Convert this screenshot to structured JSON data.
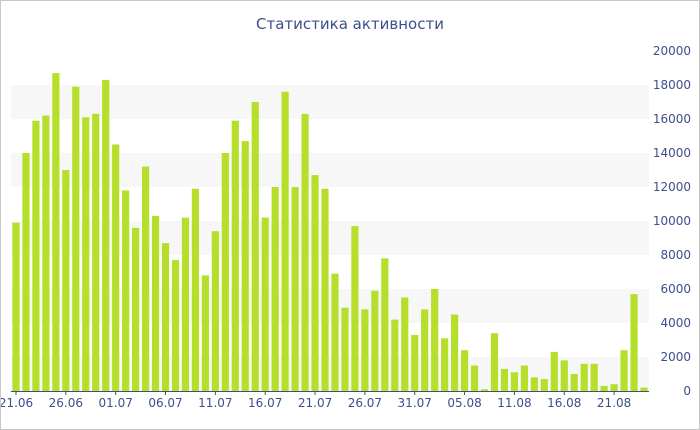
{
  "chart_data": {
    "type": "bar",
    "title": "Статистика активности",
    "xlabel": "",
    "ylabel": "",
    "ylim": [
      0,
      20000
    ],
    "y_ticks": [
      0,
      2000,
      4000,
      6000,
      8000,
      10000,
      12000,
      14000,
      16000,
      18000,
      20000
    ],
    "y_axis_side": "right",
    "grid": "alternating horizontal bands",
    "x_tick_labels": [
      "21.06",
      "26.06",
      "01.07",
      "06.07",
      "11.07",
      "16.07",
      "21.07",
      "26.07",
      "31.07",
      "05.08",
      "11.08",
      "16.08",
      "21.08"
    ],
    "x_tick_indices": [
      0,
      5,
      10,
      15,
      20,
      25,
      30,
      35,
      40,
      45,
      50,
      55,
      60
    ],
    "values": [
      9900,
      14000,
      15900,
      16200,
      18700,
      13000,
      17900,
      16100,
      16300,
      18300,
      14500,
      11800,
      9600,
      13200,
      10300,
      8700,
      7700,
      10200,
      11900,
      6800,
      9400,
      14000,
      15900,
      14700,
      17000,
      10200,
      12000,
      17600,
      12000,
      16300,
      12700,
      11900,
      6900,
      4900,
      9700,
      4800,
      5900,
      7800,
      4200,
      5500,
      3300,
      4800,
      6000,
      3100,
      4500,
      2400,
      1500,
      100,
      3400,
      1300,
      1100,
      1500,
      800,
      700,
      2300,
      1800,
      1000,
      1600,
      1600,
      300,
      400,
      2400,
      5700,
      200
    ],
    "colors": {
      "bar": "#b5df2b",
      "band": "#f7f7f7",
      "axis": "#3c4f8c",
      "title": "#3c4f8c",
      "border": "#c8c8c8"
    }
  }
}
